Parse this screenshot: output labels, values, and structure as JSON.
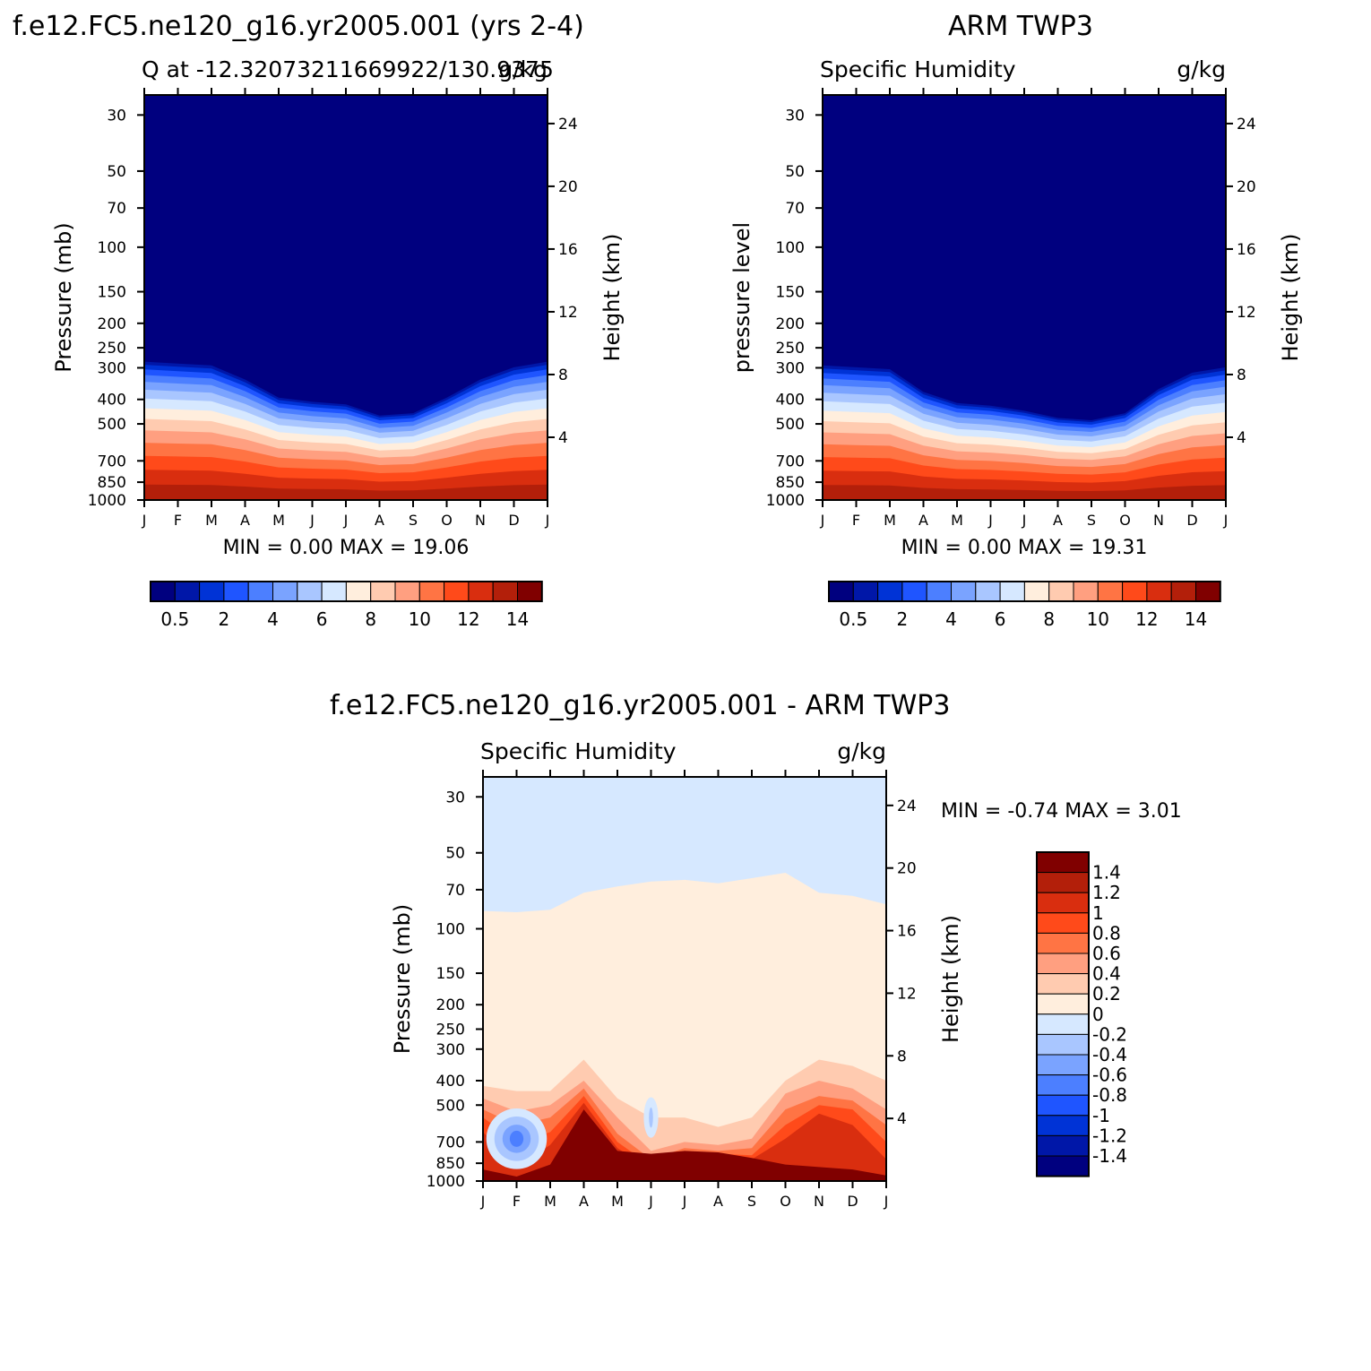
{
  "titles": {
    "top_left": "f.e12.FC5.ne120_g16.yr2005.001 (yrs 2-4)",
    "top_right": "ARM TWP3",
    "bottom": "f.e12.FC5.ne120_g16.yr2005.001 - ARM TWP3"
  },
  "chart_data": [
    {
      "type": "heatmap",
      "id": "model",
      "subtitle_left": "Q at -12.32073211669922/130.9375",
      "subtitle_right": "g/kg",
      "ylabel": "Pressure (mb)",
      "ylabel_right": "Height (km)",
      "x_tick_labels": [
        "J",
        "F",
        "M",
        "A",
        "M",
        "J",
        "J",
        "A",
        "S",
        "O",
        "N",
        "D",
        "J"
      ],
      "y_ticks": [
        30,
        50,
        70,
        100,
        150,
        200,
        250,
        300,
        400,
        500,
        700,
        850,
        1000
      ],
      "y_right_ticks": [
        4,
        8,
        12,
        16,
        20,
        24
      ],
      "ylim": [
        1000,
        25
      ],
      "stats": "MIN =    0.00 MAX =   19.06",
      "colorbar_labels": [
        "0.5",
        "2",
        "4",
        "6",
        "8",
        "10",
        "12",
        "14"
      ],
      "moisture_top_mb": [
        280,
        285,
        290,
        330,
        390,
        405,
        415,
        460,
        450,
        390,
        330,
        295,
        280
      ]
    },
    {
      "type": "heatmap",
      "id": "obs",
      "subtitle_left": "Specific Humidity",
      "subtitle_right": "g/kg",
      "ylabel": "pressure level",
      "ylabel_right": "Height (km)",
      "x_tick_labels": [
        "J",
        "F",
        "M",
        "A",
        "M",
        "J",
        "J",
        "A",
        "S",
        "O",
        "N",
        "D",
        "J"
      ],
      "y_ticks": [
        30,
        50,
        70,
        100,
        150,
        200,
        250,
        300,
        400,
        500,
        700,
        850,
        1000
      ],
      "y_right_ticks": [
        4,
        8,
        12,
        16,
        20,
        24
      ],
      "ylim": [
        1000,
        25
      ],
      "stats": "MIN =    0.00 MAX =   19.31",
      "colorbar_labels": [
        "0.5",
        "2",
        "4",
        "6",
        "8",
        "10",
        "12",
        "14"
      ],
      "moisture_top_mb": [
        290,
        295,
        300,
        370,
        410,
        420,
        440,
        470,
        480,
        450,
        360,
        310,
        295
      ]
    },
    {
      "type": "heatmap",
      "id": "diff",
      "subtitle_left": "Specific Humidity",
      "subtitle_right": "g/kg",
      "ylabel": "Pressure (mb)",
      "ylabel_right": "Height (km)",
      "x_tick_labels": [
        "J",
        "F",
        "M",
        "A",
        "M",
        "J",
        "J",
        "A",
        "S",
        "O",
        "N",
        "D",
        "J"
      ],
      "y_ticks": [
        30,
        50,
        70,
        100,
        150,
        200,
        250,
        300,
        400,
        500,
        700,
        850,
        1000
      ],
      "y_right_ticks": [
        4,
        8,
        12,
        16,
        20,
        24
      ],
      "ylim": [
        1000,
        25
      ],
      "stats": "MIN =   -0.74 MAX =    3.01",
      "colorbar_labels": [
        "1.4",
        "1.2",
        "1",
        "0.8",
        "0.6",
        "0.4",
        "0.2",
        "0",
        "-0.2",
        "-0.4",
        "-0.6",
        "-0.8",
        "-1",
        "-1.2",
        "-1.4"
      ]
    }
  ],
  "colors": {
    "model_scale": [
      "#00007f",
      "#0017a8",
      "#0033d6",
      "#1f55ff",
      "#4c7fff",
      "#7aa3ff",
      "#a9c6ff",
      "#d6e8ff",
      "#ffeedd",
      "#ffcbb0",
      "#ff9f80",
      "#ff7444",
      "#ff4a1a",
      "#d92e0f",
      "#b31f0a",
      "#800000"
    ],
    "diff_scale": [
      "#800000",
      "#b31f0a",
      "#d92e0f",
      "#ff4a1a",
      "#ff7444",
      "#ff9f80",
      "#ffcbb0",
      "#ffeedd",
      "#d6e8ff",
      "#a9c6ff",
      "#7aa3ff",
      "#4c7fff",
      "#1f55ff",
      "#0033d6",
      "#0017a8",
      "#00007f"
    ]
  }
}
